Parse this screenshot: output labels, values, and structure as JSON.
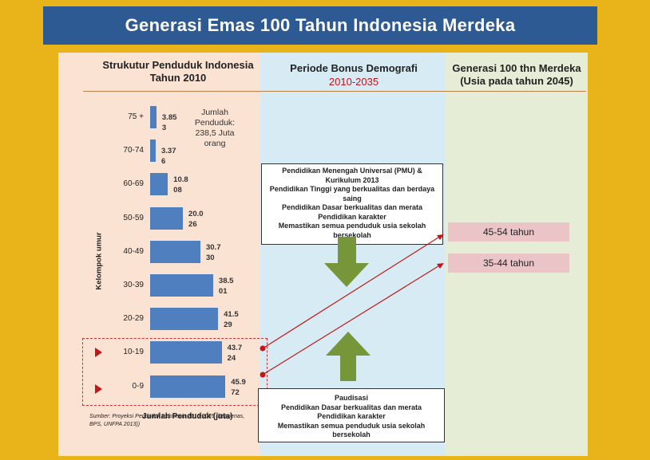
{
  "title": "Generasi  Emas 100 Tahun Indonesia Merdeka",
  "left_header": {
    "line1": "Strukutur Penduduk Indonesia",
    "line2": "Tahun 2010"
  },
  "mid_header": {
    "line1": "Periode Bonus Demografi",
    "line2": "2010-2035"
  },
  "right_header": {
    "line1": "Generasi 100 thn Merdeka",
    "line2": "(Usia pada tahun 2045)"
  },
  "chart_data": {
    "type": "bar",
    "orientation": "horizontal",
    "categories": [
      "75 +",
      "70-74",
      "60-69",
      "50-59",
      "40-49",
      "30-39",
      "20-29",
      "10-19",
      "0-9"
    ],
    "values": [
      3.853,
      3.376,
      10.808,
      20.026,
      30.73,
      38.501,
      41.529,
      43.724,
      45.972
    ],
    "value_labels": [
      "3.853",
      "3.376",
      "10.808",
      "20.026",
      "30.730",
      "38.501",
      "41.529",
      "43.724",
      "45.972"
    ],
    "ylabel": "Kelompok umur",
    "xlabel": "Jumlah Penduduk (juta)",
    "annotation": "Jumlah Penduduk: 238,5 Juta orang",
    "source": "Sumber: Proyeksi Penduduk Indonesia 2010-2035 (Bappenas, BPS, UNFPA 2013))",
    "color": "#4f7fbf",
    "highlighted": [
      "10-19",
      "0-9"
    ]
  },
  "box_top": {
    "lines": [
      "Pendidikan Menengah Universal (PMU) &",
      "Kurikulum 2013",
      "Pendidikan Tinggi yang berkualitas dan berdaya saing",
      "Pendidikan Dasar berkualitas dan merata",
      "Pendidikan karakter",
      "Memastikan semua penduduk usia sekolah bersekolah"
    ]
  },
  "box_bottom": {
    "lines": [
      "Paudisasi",
      "Pendidikan Dasar berkualitas dan merata",
      "Pendidikan karakter",
      "Memastikan semua penduduk usia sekolah bersekolah"
    ]
  },
  "age_boxes": [
    "45-54 tahun",
    "35-44 tahun"
  ],
  "colors": {
    "background": "#e8b41a",
    "banner": "#2e5a94",
    "arrow_green": "#77963a",
    "arrow_red": "#c01818",
    "period_red": "#c0141c"
  }
}
